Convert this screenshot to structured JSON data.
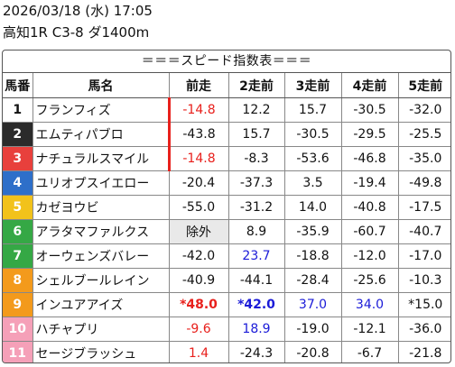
{
  "header": {
    "datetime": "2026/03/18 (水) 17:05",
    "race": "高知1R C3-8 ダ1400m"
  },
  "table": {
    "title": "＝＝＝スピード指数表＝＝＝",
    "columns": [
      "馬番",
      "馬名",
      "前走",
      "2走前",
      "3走前",
      "4走前",
      "5走前"
    ],
    "rows": [
      {
        "num": "1",
        "name": "フランフィズ",
        "color": "#ffffff",
        "text": "#111111",
        "vals": [
          "-14.8",
          "12.2",
          "15.7",
          "-30.5",
          "-32.0"
        ],
        "styles": [
          "red",
          "",
          "",
          "",
          ""
        ],
        "bar": true
      },
      {
        "num": "2",
        "name": "エムティパブロ",
        "color": "#2b2b2b",
        "text": "#ffffff",
        "vals": [
          "-43.8",
          "15.7",
          "-30.5",
          "-29.5",
          "-25.5"
        ],
        "styles": [
          "",
          "",
          "",
          "",
          ""
        ],
        "bar": true
      },
      {
        "num": "3",
        "name": "ナチュラルスマイル",
        "color": "#e8403c",
        "text": "#ffffff",
        "vals": [
          "-14.8",
          "-8.3",
          "-53.6",
          "-46.8",
          "-35.0"
        ],
        "styles": [
          "red",
          "",
          "",
          "",
          ""
        ],
        "bar": true
      },
      {
        "num": "4",
        "name": "ユリオプスイエロー",
        "color": "#2e6fc9",
        "text": "#ffffff",
        "vals": [
          "-20.4",
          "-37.3",
          "3.5",
          "-19.4",
          "-49.8"
        ],
        "styles": [
          "",
          "",
          "",
          "",
          ""
        ],
        "bar": false
      },
      {
        "num": "5",
        "name": "カゼヨウビ",
        "color": "#f2c21b",
        "text": "#ffffff",
        "vals": [
          "-55.0",
          "-31.2",
          "14.0",
          "-40.8",
          "-17.5"
        ],
        "styles": [
          "",
          "",
          "",
          "",
          ""
        ],
        "bar": false
      },
      {
        "num": "6",
        "name": "アラタマファルクス",
        "color": "#35a845",
        "text": "#ffffff",
        "vals": [
          "除外",
          "8.9",
          "-35.9",
          "-60.7",
          "-40.7"
        ],
        "styles": [
          "excl",
          "",
          "",
          "",
          ""
        ],
        "bar": false
      },
      {
        "num": "7",
        "name": "オーウェンズバレー",
        "color": "#35a845",
        "text": "#ffffff",
        "vals": [
          "-42.0",
          "23.7",
          "-18.8",
          "-12.0",
          "-17.0"
        ],
        "styles": [
          "",
          "blue",
          "",
          "",
          ""
        ],
        "bar": false
      },
      {
        "num": "8",
        "name": "シェルブールレイン",
        "color": "#f39a1c",
        "text": "#ffffff",
        "vals": [
          "-40.9",
          "-44.1",
          "-28.4",
          "-25.6",
          "-10.3"
        ],
        "styles": [
          "",
          "",
          "",
          "",
          ""
        ],
        "bar": false
      },
      {
        "num": "9",
        "name": "インユアアイズ",
        "color": "#f39a1c",
        "text": "#ffffff",
        "vals": [
          "*48.0",
          "*42.0",
          "37.0",
          "34.0",
          "*15.0"
        ],
        "styles": [
          "red bold",
          "blue bold",
          "blue",
          "blue",
          ""
        ],
        "bar": false
      },
      {
        "num": "10",
        "name": "ハチャプリ",
        "color": "#f5a0b8",
        "text": "#ffffff",
        "vals": [
          "-9.6",
          "18.9",
          "-19.0",
          "-12.1",
          "-36.0"
        ],
        "styles": [
          "red",
          "blue",
          "",
          "",
          ""
        ],
        "bar": false
      },
      {
        "num": "11",
        "name": "セージブラッシュ",
        "color": "#f5a0b8",
        "text": "#ffffff",
        "vals": [
          "1.4",
          "-24.3",
          "-20.8",
          "-6.7",
          "-21.8"
        ],
        "styles": [
          "red",
          "",
          "",
          "",
          ""
        ],
        "bar": false
      }
    ]
  }
}
